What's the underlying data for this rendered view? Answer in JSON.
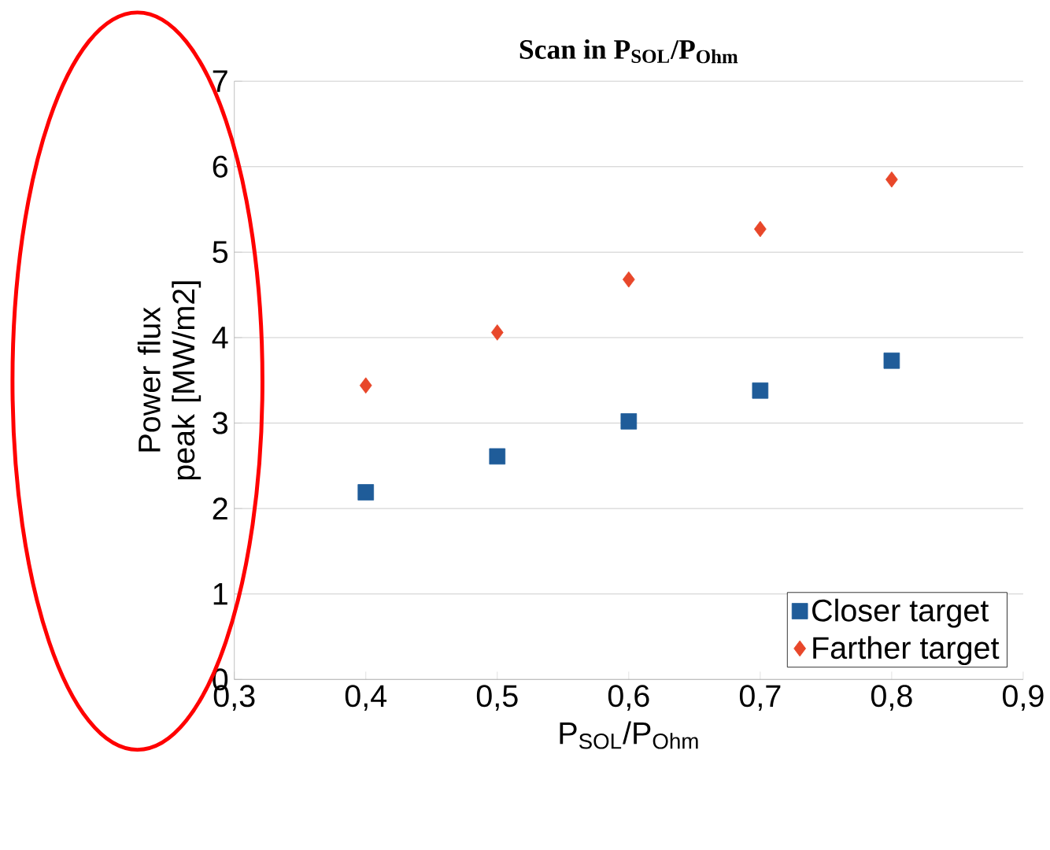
{
  "chart_data": {
    "type": "scatter",
    "title": "Scan in P$_{SOL}$/P$_{Ohm}$",
    "xlabel": "P$_{SOL}$/P$_{Ohm}$",
    "ylabel": "Power flux peak [MW/m2]",
    "xlim": [
      0.3,
      0.9
    ],
    "xticks": [
      {
        "value": 0.3,
        "label": "0,3"
      },
      {
        "value": 0.4,
        "label": "0,4"
      },
      {
        "value": 0.5,
        "label": "0,5"
      },
      {
        "value": 0.6,
        "label": "0,6"
      },
      {
        "value": 0.7,
        "label": "0,7"
      },
      {
        "value": 0.8,
        "label": "0,8"
      },
      {
        "value": 0.9,
        "label": "0,9"
      }
    ],
    "ylim": [
      0,
      7
    ],
    "yticks": [
      0,
      1,
      2,
      3,
      4,
      5,
      6,
      7
    ],
    "grid": "y",
    "legend": "bottom right",
    "x": [
      0.4,
      0.5,
      0.6,
      0.7,
      0.8
    ],
    "series": [
      {
        "name": "Closer target",
        "color": "#1f5c99",
        "marker": "square",
        "values": [
          2.19,
          2.61,
          3.02,
          3.38,
          3.73
        ]
      },
      {
        "name": "Farther target",
        "color": "#e8472a",
        "marker": "diamond",
        "values": [
          3.44,
          4.06,
          4.68,
          5.27,
          5.85
        ]
      }
    ]
  }
}
